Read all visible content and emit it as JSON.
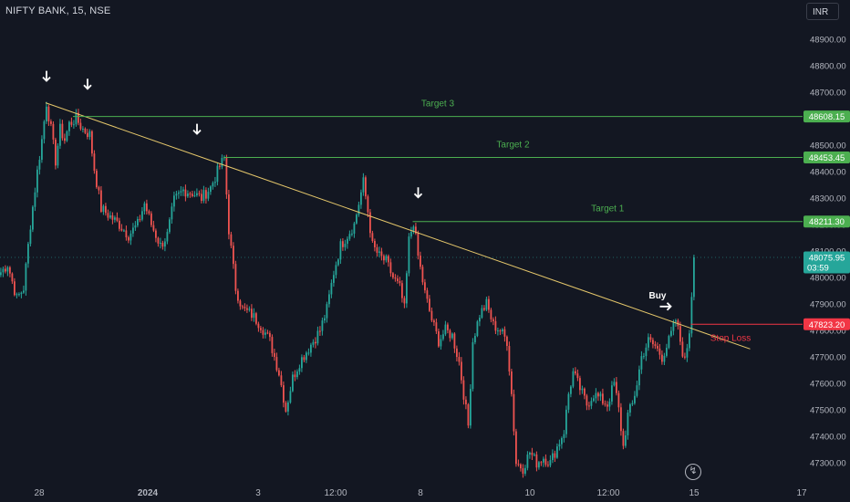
{
  "header": {
    "ticker": "NIFTY BANK, 15, NSE",
    "currency": "INR"
  },
  "icons": {
    "replay": "lightning-replay-icon",
    "arrows": "down-arrow-icon"
  },
  "colors": {
    "background": "#131722",
    "up": "#26a69a",
    "down": "#ef5350",
    "target": "#4caf50",
    "trendline": "#e5c76b",
    "stoploss": "#f23645",
    "text": "#d1d4dc"
  },
  "chart_data": {
    "type": "candlestick",
    "title": "NIFTY BANK, 15, NSE",
    "x_tick_labels": [
      "28",
      "2024",
      "3",
      "12:00",
      "8",
      "10",
      "12:00",
      "15",
      "17"
    ],
    "y_ticks": [
      47300,
      47400,
      47500,
      47600,
      47700,
      47800,
      47900,
      48000,
      48100,
      48200,
      48300,
      48400,
      48500,
      48600,
      48700,
      48800,
      48900
    ],
    "y_tick_labels": [
      "47300.00",
      "47400.00",
      "47500.00",
      "47600.00",
      "47700.00",
      "47800.00",
      "47900.00",
      "48000.00",
      "48100.00",
      "48200.00",
      "48300.00",
      "48400.00",
      "48500.00",
      "48600.00",
      "48700.00",
      "48800.00",
      "48900.00"
    ],
    "ylim": [
      47230,
      49000
    ],
    "grid": false,
    "price_path": [
      [
        0,
        48020
      ],
      [
        3,
        48050
      ],
      [
        7,
        47920
      ],
      [
        10,
        47960
      ],
      [
        13,
        48200
      ],
      [
        16,
        48400
      ],
      [
        18,
        48520
      ],
      [
        20,
        48660
      ],
      [
        22,
        48560
      ],
      [
        24,
        48440
      ],
      [
        26,
        48560
      ],
      [
        28,
        48520
      ],
      [
        30,
        48580
      ],
      [
        33,
        48600
      ],
      [
        36,
        48560
      ],
      [
        39,
        48540
      ],
      [
        41,
        48410
      ],
      [
        44,
        48260
      ],
      [
        48,
        48230
      ],
      [
        52,
        48200
      ],
      [
        56,
        48160
      ],
      [
        60,
        48200
      ],
      [
        63,
        48280
      ],
      [
        66,
        48200
      ],
      [
        70,
        48120
      ],
      [
        73,
        48160
      ],
      [
        76,
        48290
      ],
      [
        80,
        48330
      ],
      [
        84,
        48320
      ],
      [
        88,
        48300
      ],
      [
        92,
        48340
      ],
      [
        96,
        48420
      ],
      [
        98,
        48450
      ],
      [
        100,
        48180
      ],
      [
        103,
        47960
      ],
      [
        106,
        47880
      ],
      [
        110,
        47860
      ],
      [
        114,
        47820
      ],
      [
        118,
        47760
      ],
      [
        122,
        47640
      ],
      [
        125,
        47500
      ],
      [
        128,
        47620
      ],
      [
        131,
        47680
      ],
      [
        134,
        47720
      ],
      [
        137,
        47760
      ],
      [
        140,
        47800
      ],
      [
        143,
        47880
      ],
      [
        146,
        48020
      ],
      [
        149,
        48120
      ],
      [
        152,
        48160
      ],
      [
        155,
        48200
      ],
      [
        157,
        48280
      ],
      [
        159,
        48360
      ],
      [
        161,
        48250
      ],
      [
        163,
        48120
      ],
      [
        166,
        48080
      ],
      [
        169,
        48060
      ],
      [
        172,
        48000
      ],
      [
        175,
        47960
      ],
      [
        177,
        47880
      ],
      [
        179,
        48140
      ],
      [
        181,
        48211
      ],
      [
        183,
        48080
      ],
      [
        186,
        47940
      ],
      [
        189,
        47840
      ],
      [
        192,
        47760
      ],
      [
        195,
        47800
      ],
      [
        198,
        47780
      ],
      [
        201,
        47680
      ],
      [
        203,
        47560
      ],
      [
        205,
        47440
      ],
      [
        207,
        47760
      ],
      [
        210,
        47860
      ],
      [
        213,
        47900
      ],
      [
        216,
        47820
      ],
      [
        219,
        47800
      ],
      [
        222,
        47760
      ],
      [
        224,
        47560
      ],
      [
        226,
        47300
      ],
      [
        229,
        47280
      ],
      [
        232,
        47340
      ],
      [
        235,
        47300
      ],
      [
        238,
        47320
      ],
      [
        241,
        47300
      ],
      [
        244,
        47360
      ],
      [
        247,
        47420
      ],
      [
        249,
        47560
      ],
      [
        251,
        47640
      ],
      [
        254,
        47580
      ],
      [
        257,
        47520
      ],
      [
        260,
        47560
      ],
      [
        263,
        47540
      ],
      [
        266,
        47520
      ],
      [
        269,
        47600
      ],
      [
        271,
        47500
      ],
      [
        273,
        47360
      ],
      [
        275,
        47480
      ],
      [
        277,
        47520
      ],
      [
        279,
        47600
      ],
      [
        281,
        47700
      ],
      [
        284,
        47760
      ],
      [
        287,
        47740
      ],
      [
        290,
        47700
      ],
      [
        293,
        47760
      ],
      [
        296,
        47840
      ],
      [
        298,
        47760
      ],
      [
        300,
        47680
      ],
      [
        302,
        47800
      ],
      [
        304,
        48075.95
      ]
    ],
    "annotations": {
      "trendline": {
        "from": [
          20,
          48660
        ],
        "to": [
          329,
          47730
        ]
      },
      "targets": [
        {
          "label": "Target 3",
          "price": 48608.15,
          "price_label": "48608.15",
          "x_start": 32
        },
        {
          "label": "Target 2",
          "price": 48453.45,
          "price_label": "48453.45",
          "x_start": 98
        },
        {
          "label": "Target 1",
          "price": 48211.3,
          "price_label": "48211.30",
          "x_start": 181
        }
      ],
      "stop_loss": {
        "label": "Stop Loss",
        "price": 47823.2,
        "price_label": "47823.20",
        "x_start": 303
      },
      "current_price": {
        "price": 48075.95,
        "price_label": "48075.95",
        "countdown": "03:59"
      },
      "buy": {
        "label": "Buy",
        "x": 295,
        "price": 47880
      },
      "down_arrows": [
        [
          20,
          48760
        ],
        [
          38,
          48730
        ],
        [
          86,
          48560
        ],
        [
          183,
          48320
        ]
      ]
    }
  }
}
